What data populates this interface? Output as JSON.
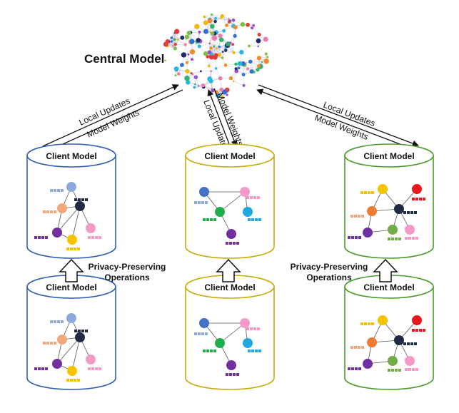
{
  "central": {
    "title": "Central Model"
  },
  "arrows": {
    "left": {
      "up": "Local Updates",
      "down": "Model Weights"
    },
    "middle": {
      "up": "Local Updates",
      "down": "Model Weights"
    },
    "right": {
      "up": "Local Updates",
      "down": "Model Weights"
    }
  },
  "clients": [
    {
      "id": "top-left",
      "title": "Client Model",
      "rim": "#2f5eb0",
      "variant": "a"
    },
    {
      "id": "top-middle",
      "title": "Client Model",
      "rim": "#c9a90a",
      "variant": "b"
    },
    {
      "id": "top-right",
      "title": "Client Model",
      "rim": "#4a9a2c",
      "variant": "c"
    },
    {
      "id": "bottom-left",
      "title": "Client Model",
      "rim": "#2f5eb0",
      "variant": "a"
    },
    {
      "id": "bottom-middle",
      "title": "Client Model",
      "rim": "#c9a90a",
      "variant": "b"
    },
    {
      "id": "bottom-right",
      "title": "Client Model",
      "rim": "#4a9a2c",
      "variant": "c"
    }
  ],
  "privacy": {
    "left": {
      "line1": "Privacy-Preserving",
      "line2": "Operations"
    },
    "right": {
      "line1": "Privacy-Preserving",
      "line2": "Operations"
    }
  },
  "node_colors": {
    "blue_light": "#8ea9dc",
    "peach": "#f2a77a",
    "navy": "#1f2a44",
    "purple": "#7030a0",
    "pink": "#f59ac8",
    "yellow": "#f5c200",
    "blue": "#4472c4",
    "green": "#1fae4b",
    "cyan": "#1fa8e0",
    "red": "#e81919",
    "orange": "#ed7d31",
    "lime": "#70ad47"
  },
  "brain_colors": [
    "#e23b3b",
    "#2f6fd6",
    "#f2b705",
    "#2fb36b",
    "#f27ab0",
    "#9a4fd0",
    "#27b6e0",
    "#f28c28",
    "#1f2a6b",
    "#7ac143"
  ]
}
